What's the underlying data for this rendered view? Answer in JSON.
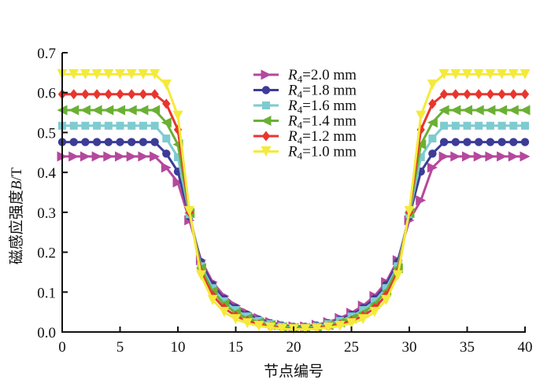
{
  "chart_data": {
    "type": "line",
    "title": "",
    "xlabel": "节点编号",
    "ylabel_main": "磁感应强度",
    "ylabel_var": "B",
    "ylabel_unit": "/T",
    "xlim": [
      0,
      40
    ],
    "ylim": [
      0,
      0.7
    ],
    "xticks": [
      0,
      5,
      10,
      15,
      20,
      25,
      30,
      35,
      40
    ],
    "xtick_labels": [
      "0",
      "5",
      "10",
      "15",
      "20",
      "25",
      "30",
      "35",
      "40"
    ],
    "yticks": [
      0,
      0.1,
      0.2,
      0.3,
      0.4,
      0.5,
      0.6,
      0.7
    ],
    "ytick_labels": [
      "0.0",
      "0.1",
      "0.2",
      "0.3",
      "0.4",
      "0.5",
      "0.6",
      "0.7"
    ],
    "grid": false,
    "legend_position": "top-center",
    "x": [
      0,
      1,
      2,
      3,
      4,
      5,
      6,
      7,
      8,
      9,
      10,
      11,
      12,
      13,
      14,
      15,
      16,
      17,
      18,
      19,
      20,
      21,
      22,
      23,
      24,
      25,
      26,
      27,
      28,
      29,
      30,
      31,
      32,
      33,
      34,
      35,
      36,
      37,
      38,
      39,
      40
    ],
    "series": [
      {
        "name": "R4=2.0 mm",
        "var": "R",
        "sub": "4",
        "rest": "=2.0 mm",
        "color": "#b5489c",
        "marker": "triangle-right",
        "values": [
          0.44,
          0.44,
          0.44,
          0.44,
          0.44,
          0.44,
          0.44,
          0.44,
          0.44,
          0.412,
          0.375,
          0.28,
          0.18,
          0.125,
          0.09,
          0.066,
          0.048,
          0.035,
          0.025,
          0.018,
          0.014,
          0.014,
          0.018,
          0.025,
          0.035,
          0.048,
          0.066,
          0.09,
          0.125,
          0.18,
          0.28,
          0.33,
          0.412,
          0.44,
          0.44,
          0.44,
          0.44,
          0.44,
          0.44,
          0.44,
          0.44
        ]
      },
      {
        "name": "R4=1.8 mm",
        "var": "R",
        "sub": "4",
        "rest": "=1.8 mm",
        "color": "#3c3c96",
        "marker": "circle",
        "values": [
          0.476,
          0.476,
          0.476,
          0.476,
          0.476,
          0.476,
          0.476,
          0.476,
          0.476,
          0.447,
          0.402,
          0.29,
          0.175,
          0.118,
          0.083,
          0.06,
          0.043,
          0.031,
          0.022,
          0.016,
          0.013,
          0.013,
          0.016,
          0.022,
          0.031,
          0.043,
          0.06,
          0.083,
          0.118,
          0.175,
          0.29,
          0.402,
          0.447,
          0.476,
          0.476,
          0.476,
          0.476,
          0.476,
          0.476,
          0.476,
          0.476
        ]
      },
      {
        "name": "R4=1.6 mm",
        "var": "R",
        "sub": "4",
        "rest": "=1.6 mm",
        "color": "#7ecbd0",
        "marker": "square",
        "values": [
          0.517,
          0.517,
          0.517,
          0.517,
          0.517,
          0.517,
          0.517,
          0.517,
          0.517,
          0.485,
          0.438,
          0.295,
          0.165,
          0.11,
          0.077,
          0.055,
          0.039,
          0.028,
          0.02,
          0.014,
          0.011,
          0.011,
          0.014,
          0.02,
          0.028,
          0.039,
          0.055,
          0.077,
          0.11,
          0.165,
          0.295,
          0.438,
          0.485,
          0.517,
          0.517,
          0.517,
          0.517,
          0.517,
          0.517,
          0.517,
          0.517
        ]
      },
      {
        "name": "R4=1.4 mm",
        "var": "R",
        "sub": "4",
        "rest": "=1.4 mm",
        "color": "#6ab033",
        "marker": "triangle-left",
        "values": [
          0.556,
          0.556,
          0.556,
          0.556,
          0.556,
          0.556,
          0.556,
          0.556,
          0.556,
          0.525,
          0.47,
          0.298,
          0.16,
          0.102,
          0.07,
          0.048,
          0.034,
          0.024,
          0.017,
          0.012,
          0.01,
          0.01,
          0.012,
          0.017,
          0.024,
          0.034,
          0.048,
          0.07,
          0.102,
          0.16,
          0.298,
          0.47,
          0.525,
          0.556,
          0.556,
          0.556,
          0.556,
          0.556,
          0.556,
          0.556,
          0.556
        ]
      },
      {
        "name": "R4=1.2 mm",
        "var": "R",
        "sub": "4",
        "rest": "=1.2 mm",
        "color": "#e8362e",
        "marker": "diamond",
        "values": [
          0.596,
          0.596,
          0.596,
          0.596,
          0.596,
          0.596,
          0.596,
          0.596,
          0.596,
          0.572,
          0.507,
          0.3,
          0.15,
          0.092,
          0.06,
          0.04,
          0.028,
          0.019,
          0.013,
          0.01,
          0.008,
          0.008,
          0.01,
          0.013,
          0.019,
          0.028,
          0.04,
          0.06,
          0.092,
          0.15,
          0.3,
          0.507,
          0.572,
          0.596,
          0.596,
          0.596,
          0.596,
          0.596,
          0.596,
          0.596,
          0.596
        ]
      },
      {
        "name": "R4=1.0 mm",
        "var": "R",
        "sub": "4",
        "rest": "=1.0 mm",
        "color": "#f4ea3c",
        "marker": "triangle-down",
        "values": [
          0.646,
          0.646,
          0.646,
          0.646,
          0.646,
          0.646,
          0.646,
          0.646,
          0.646,
          0.62,
          0.542,
          0.303,
          0.142,
          0.08,
          0.05,
          0.032,
          0.022,
          0.015,
          0.011,
          0.008,
          0.007,
          0.007,
          0.008,
          0.011,
          0.015,
          0.022,
          0.032,
          0.05,
          0.08,
          0.142,
          0.303,
          0.542,
          0.62,
          0.646,
          0.646,
          0.646,
          0.646,
          0.646,
          0.646,
          0.646,
          0.646
        ]
      }
    ]
  }
}
